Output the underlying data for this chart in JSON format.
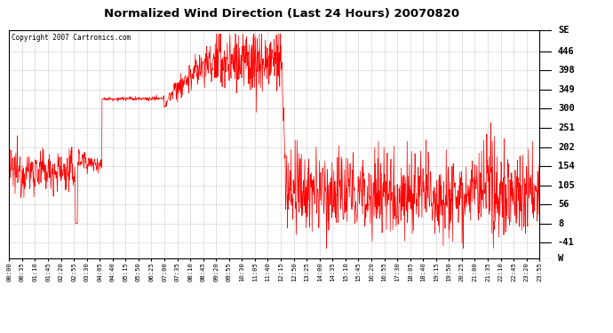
{
  "title": "Normalized Wind Direction (Last 24 Hours) 20070820",
  "copyright": "Copyright 2007 Cartronics.com",
  "line_color": "#FF0000",
  "bg_color": "#FFFFFF",
  "plot_bg_color": "#FFFFFF",
  "grid_color": "#B0B0B0",
  "yticks": [
    -41,
    8,
    56,
    105,
    154,
    202,
    251,
    300,
    349,
    398,
    446
  ],
  "ymin": -80,
  "ymax": 500,
  "right_labels_vals": [
    500,
    446,
    398,
    349,
    300,
    251,
    202,
    154,
    105,
    56,
    8,
    -41,
    -80
  ],
  "right_labels_text": [
    "SE",
    "446",
    "398",
    "349",
    "300",
    "251",
    "202",
    "154",
    "105",
    "56",
    "8",
    "-41",
    "W"
  ],
  "xtick_labels": [
    "00:00",
    "00:35",
    "01:10",
    "01:45",
    "02:20",
    "02:55",
    "03:30",
    "04:05",
    "04:40",
    "05:15",
    "05:50",
    "06:25",
    "07:00",
    "07:35",
    "08:10",
    "08:45",
    "09:20",
    "09:55",
    "10:30",
    "11:05",
    "11:40",
    "12:15",
    "12:50",
    "13:25",
    "14:00",
    "14:35",
    "15:10",
    "15:45",
    "16:20",
    "16:55",
    "17:30",
    "18:05",
    "18:40",
    "19:15",
    "19:50",
    "20:25",
    "21:00",
    "21:35",
    "22:10",
    "22:45",
    "23:20",
    "23:55"
  ]
}
